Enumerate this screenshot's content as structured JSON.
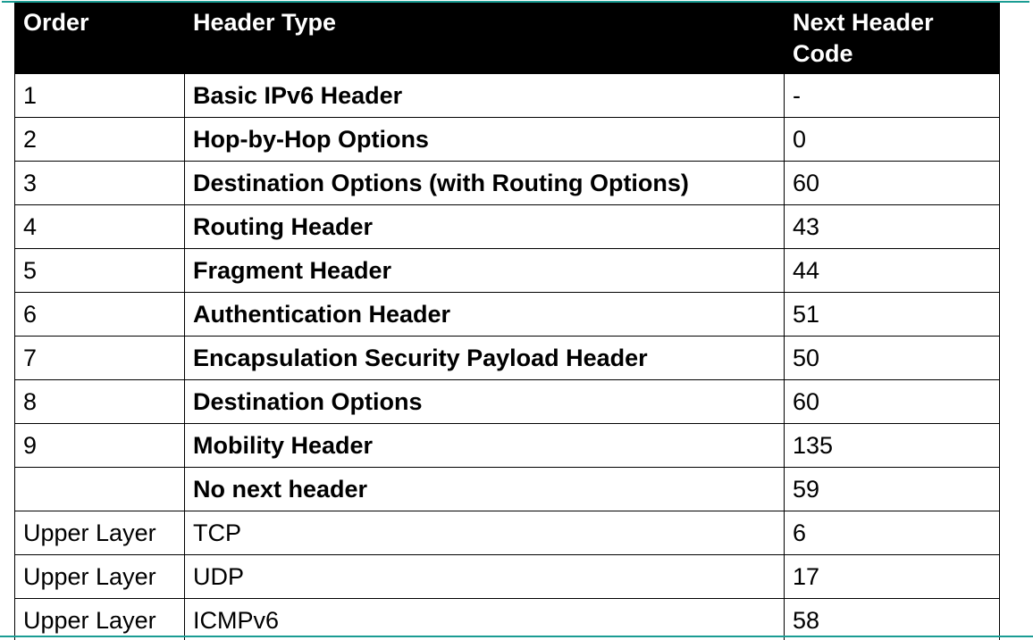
{
  "table": {
    "headers": [
      "Order",
      "Header Type",
      "Next Header Code"
    ],
    "rows": [
      {
        "order": "1",
        "type": "Basic IPv6 Header",
        "code": "-",
        "bold": true
      },
      {
        "order": "2",
        "type": "Hop-by-Hop Options",
        "code": "0",
        "bold": true
      },
      {
        "order": "3",
        "type": "Destination Options (with Routing Options)",
        "code": "60",
        "bold": true
      },
      {
        "order": "4",
        "type": "Routing Header",
        "code": "43",
        "bold": true
      },
      {
        "order": "5",
        "type": "Fragment Header",
        "code": "44",
        "bold": true
      },
      {
        "order": "6",
        "type": "Authentication Header",
        "code": "51",
        "bold": true
      },
      {
        "order": "7",
        "type": "Encapsulation Security Payload Header",
        "code": "50",
        "bold": true
      },
      {
        "order": "8",
        "type": "Destination Options",
        "code": "60",
        "bold": true
      },
      {
        "order": "9",
        "type": "Mobility Header",
        "code": "135",
        "bold": true
      },
      {
        "order": "",
        "type": "No next header",
        "code": "59",
        "bold": true
      },
      {
        "order": "Upper Layer",
        "type": "TCP",
        "code": "6",
        "bold": false
      },
      {
        "order": "Upper Layer",
        "type": "UDP",
        "code": "17",
        "bold": false
      },
      {
        "order": "Upper Layer",
        "type": "ICMPv6",
        "code": "58",
        "bold": false
      }
    ]
  },
  "colors": {
    "accent_rule": "#1a9c93",
    "header_bg": "#000000",
    "header_text": "#ffffff"
  }
}
